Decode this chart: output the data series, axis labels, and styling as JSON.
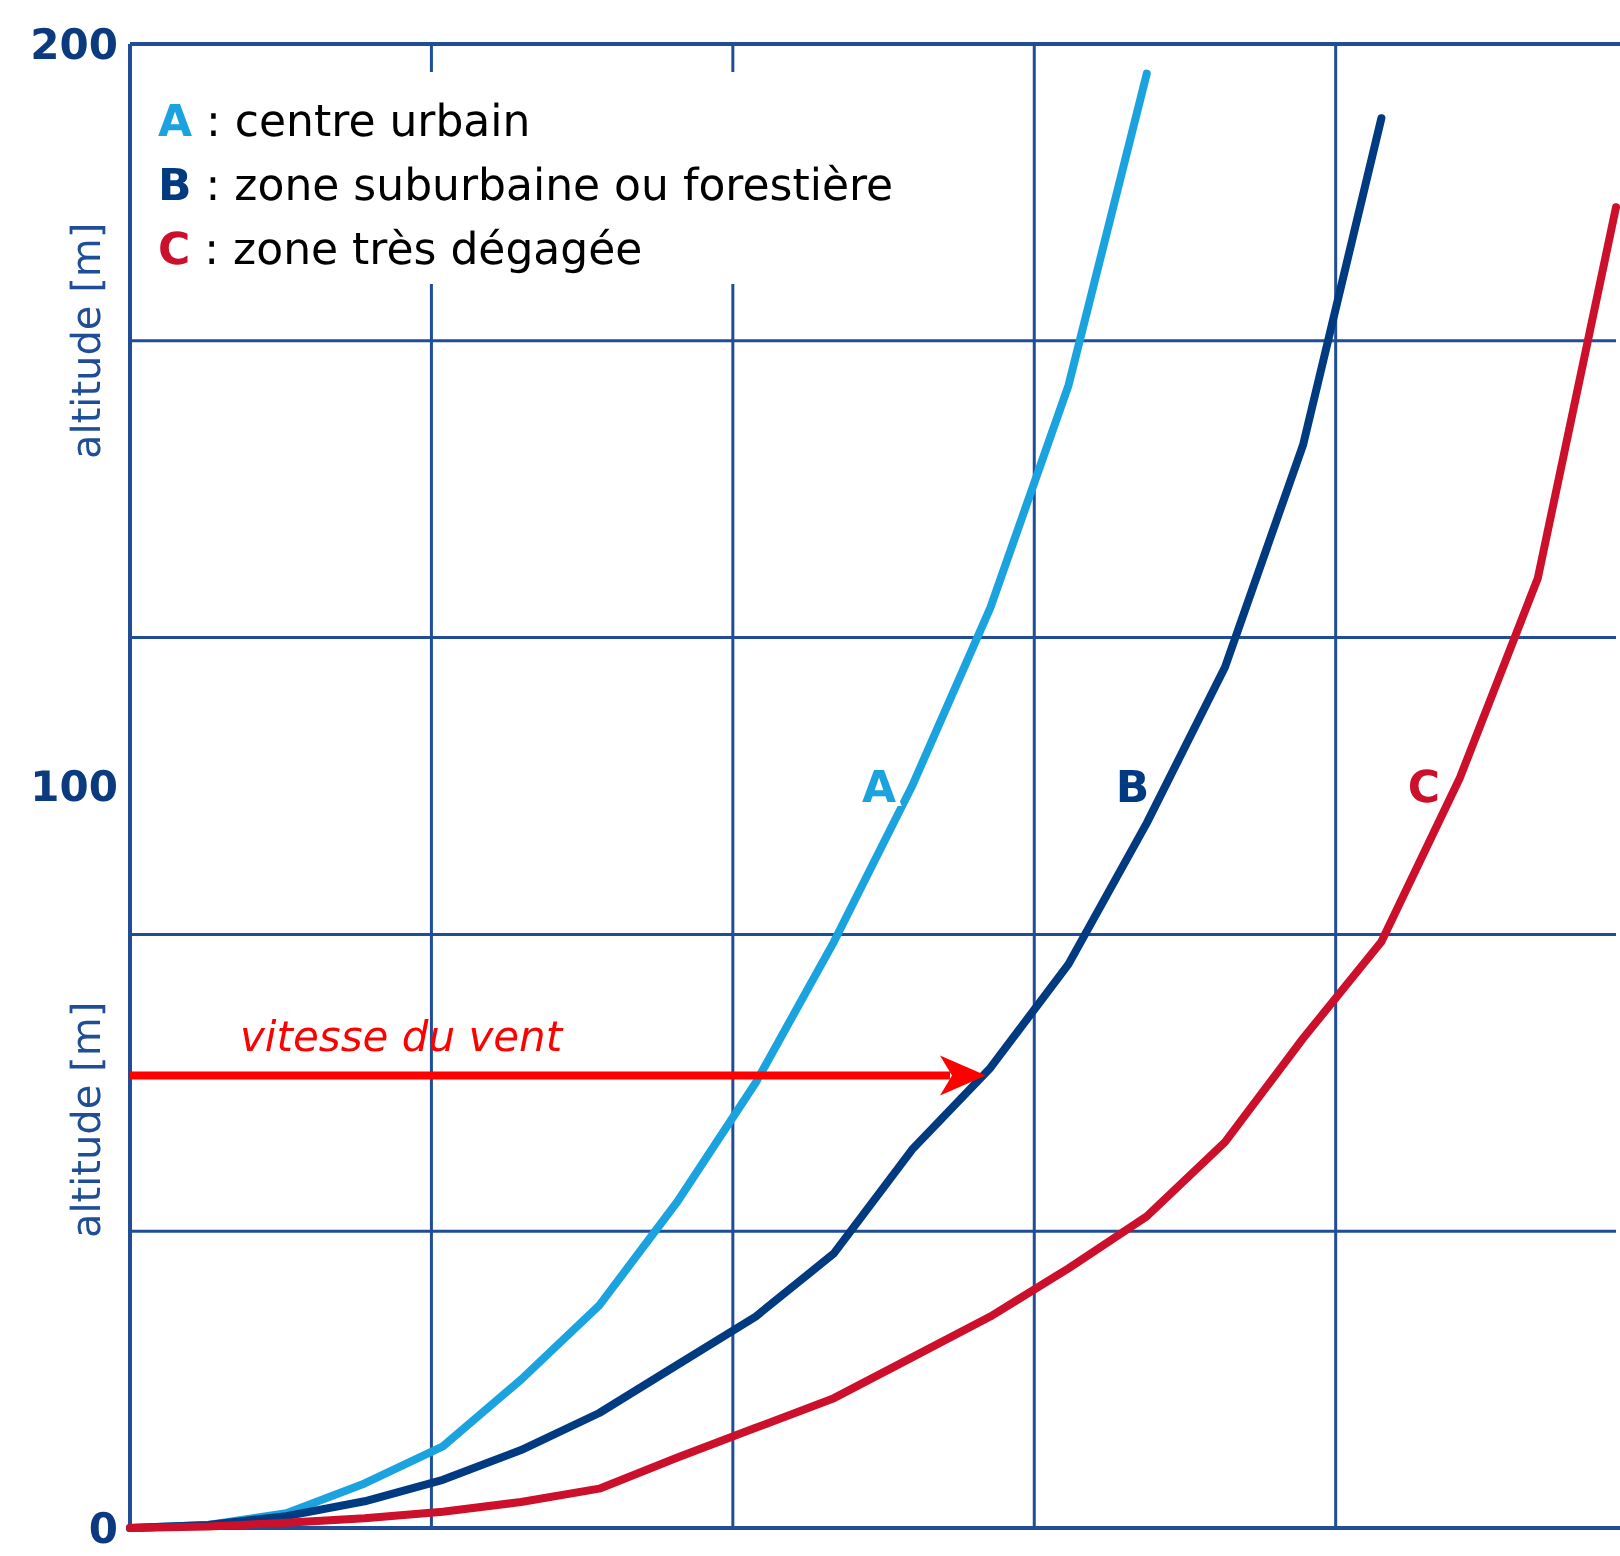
{
  "chart_data": {
    "type": "line",
    "ylabel": "altitude [m]",
    "categories": [
      null,
      null,
      null,
      null,
      null,
      null,
      null,
      null,
      null,
      null,
      null,
      null,
      null,
      null,
      null,
      null,
      null,
      null,
      null,
      null
    ],
    "ylim": [
      0,
      200
    ],
    "yticks": [
      0,
      {
        "value": 40,
        "label": null
      },
      {
        "value": 80,
        "label": null
      },
      100,
      {
        "value": 120,
        "label": null
      },
      {
        "value": 160,
        "label": null
      },
      200
    ],
    "grid": true,
    "marker": "none",
    "line_style": "solid",
    "series": [
      {
        "name": "A",
        "color": "#1aa3de",
        "values": [
          0,
          0.4,
          2,
          6,
          11,
          20,
          30,
          44,
          60,
          79,
          100,
          124,
          154,
          196,
          null,
          null,
          null,
          null,
          null,
          null
        ]
      },
      {
        "name": "B",
        "color": "#003a80",
        "values": [
          0,
          0.4,
          1.6,
          3.6,
          6.5,
          10.5,
          15.5,
          22,
          28.5,
          37,
          51,
          62,
          76,
          95,
          116,
          146,
          190,
          null,
          null,
          null
        ]
      },
      {
        "name": "C",
        "color": "#cc0f2a",
        "values": [
          0,
          0.2,
          0.7,
          1.3,
          2.2,
          3.5,
          5.3,
          9.5,
          13.5,
          17.5,
          23,
          28.5,
          35,
          42,
          52,
          66,
          79,
          101,
          128,
          178
        ]
      }
    ],
    "annotations": [
      "A : centre urbain",
      "B : zone suburbaine ou forestière",
      "C : zone très dégagée",
      "vitesse du vent"
    ]
  }
}
